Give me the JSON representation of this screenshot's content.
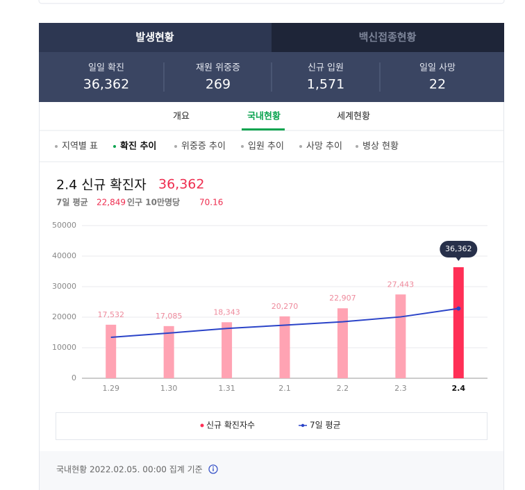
{
  "tabs": [
    "발생현황",
    "백신접종현황"
  ],
  "stats": [
    {
      "label": "일일 확진",
      "value": "36,362"
    },
    {
      "label": "재원 위중증",
      "value": "269"
    },
    {
      "label": "신규 입원",
      "value": "1,571"
    },
    {
      "label": "일일 사망",
      "value": "22"
    }
  ],
  "nav": [
    "개요",
    "국내현황",
    "세계현황"
  ],
  "subnav": [
    "지역별 표",
    "확진 추이",
    "위중증 추이",
    "입원 추이",
    "사망 추이",
    "병상 현황"
  ],
  "chart_data": {
    "type": "bar",
    "title": "2.4 신규 확진자",
    "title_value": "36,362",
    "subtitle": [
      "7일 평균",
      "22,849",
      "인구 10만명당",
      "70.16"
    ],
    "categories": [
      "1.29",
      "1.30",
      "1.31",
      "2.1",
      "2.2",
      "2.3",
      "2.4"
    ],
    "series": [
      {
        "name": "신규 확진자수",
        "type": "bar",
        "color": "#ffa3b3",
        "highlight_color": "#ff2f56",
        "values": [
          17532,
          17085,
          18343,
          20270,
          22907,
          27443,
          36362
        ],
        "value_labels": [
          "17,532",
          "17,085",
          "18,343",
          "20,270",
          "22,907",
          "27,443",
          "36,362"
        ]
      },
      {
        "name": "7일 평균",
        "type": "line",
        "color": "#2a43c8",
        "values": [
          13400,
          14800,
          16300,
          17400,
          18500,
          20100,
          22849
        ]
      }
    ],
    "ylim": [
      0,
      50000
    ],
    "yticks": [
      0,
      10000,
      20000,
      30000,
      40000,
      50000
    ],
    "grid": true
  },
  "footer": "국내현황 2022.02.05. 00:00 집계 기준"
}
